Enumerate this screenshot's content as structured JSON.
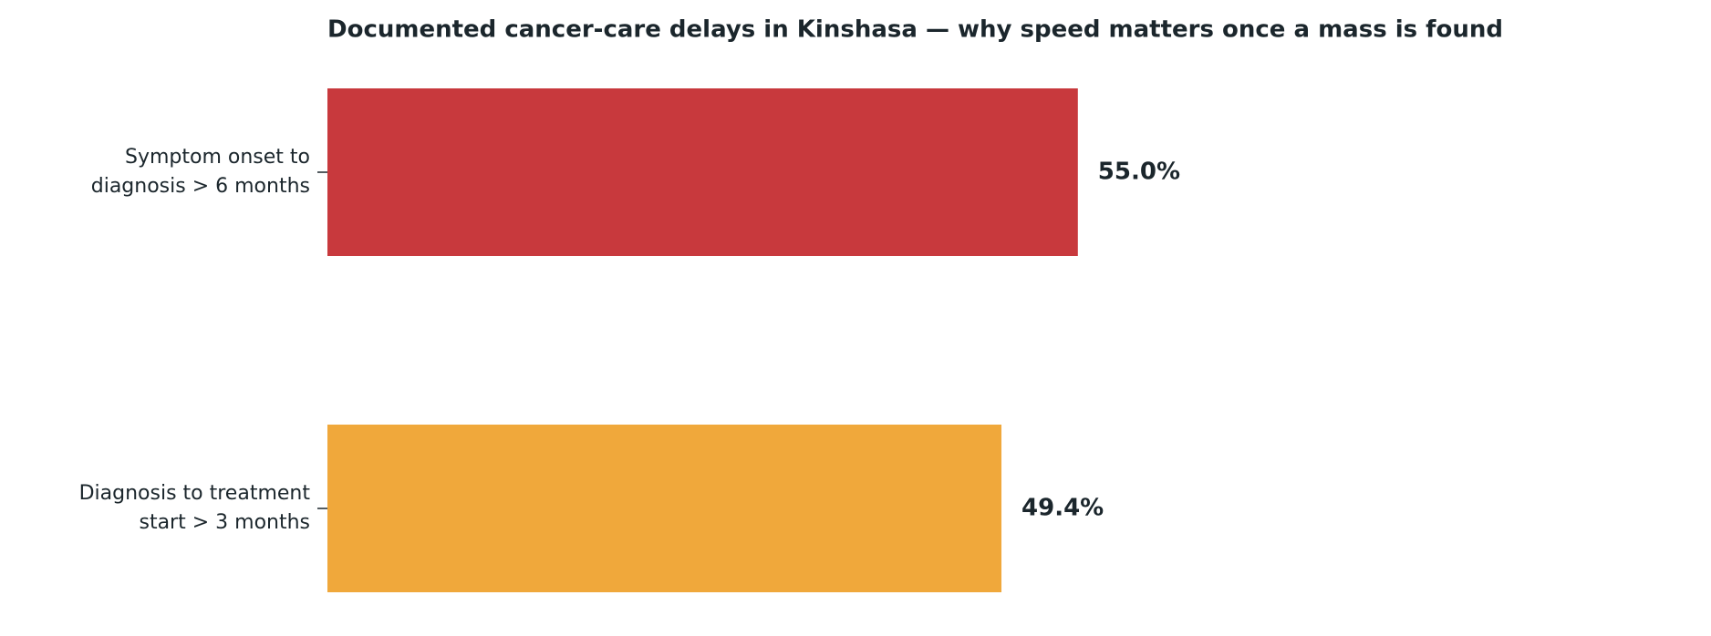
{
  "chart_data": {
    "type": "barh",
    "title": "Documented cancer-care delays in Kinshasa — why speed matters once a mass is found",
    "categories": [
      "Symptom onset to\ndiagnosis > 6 months",
      "Diagnosis to treatment\nstart > 3 months"
    ],
    "series": [
      {
        "values": [
          55.0,
          49.4
        ],
        "value_labels": [
          "55.0%",
          "49.4%"
        ],
        "colors": [
          "#c8393d",
          "#f0a83b"
        ]
      }
    ],
    "xlim": [
      0,
      100
    ],
    "grid": false
  }
}
